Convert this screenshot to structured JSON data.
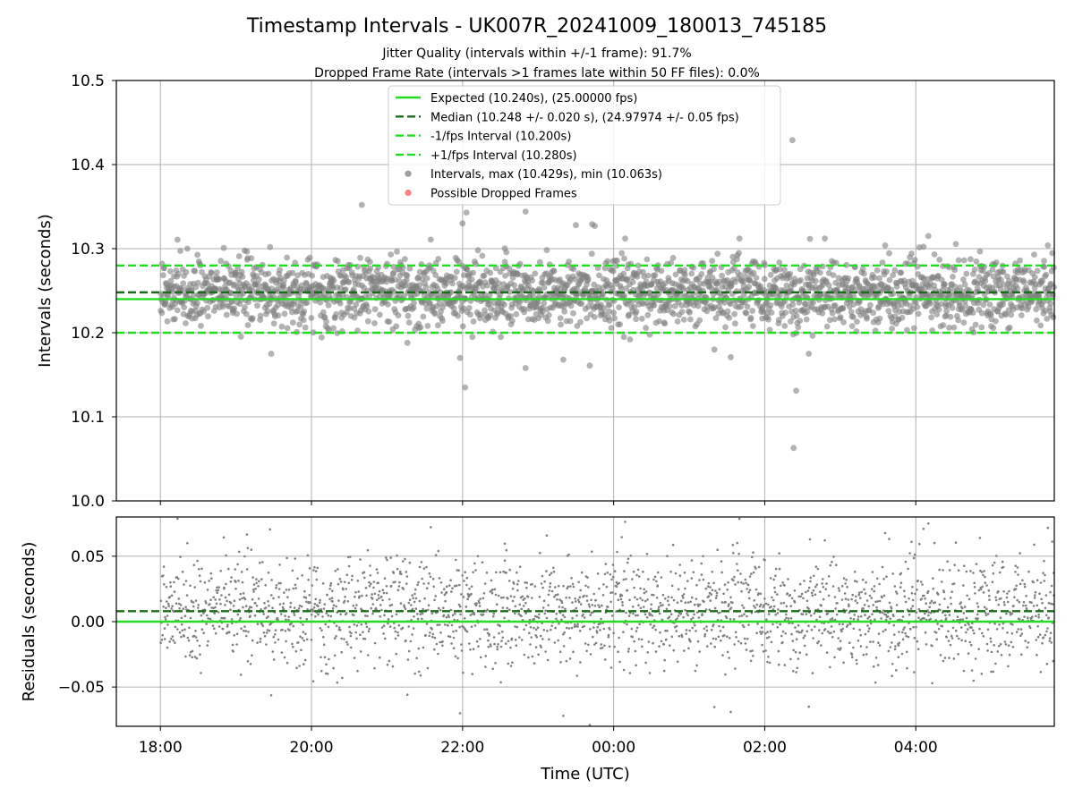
{
  "chart_data": [
    {
      "type": "scatter",
      "title": "Timestamp Intervals - UK007R_20241009_180013_745185",
      "subtitle": [
        "Jitter Quality (intervals within +/-1 frame): 91.7%",
        "Dropped Frame Rate (intervals >1 frames late within 50 FF files): 0.0%"
      ],
      "ylabel": "Intervals (seconds)",
      "xlabel": "",
      "xlim": [
        "2024-10-09 17:25",
        "2024-10-10 05:50"
      ],
      "ylim": [
        10.0,
        10.5
      ],
      "yticks": [
        "10.0",
        "10.1",
        "10.2",
        "10.3",
        "10.4",
        "10.5"
      ],
      "grid": true,
      "legend_position": "top-center",
      "legend": [
        {
          "label": "Expected (10.240s), (25.00000 fps)",
          "style": "solid",
          "color": "#22dd22"
        },
        {
          "label": "Median (10.248 +/- 0.020 s), (24.97974 +/- 0.05 fps)",
          "style": "dashed",
          "color": "#1b6b1b"
        },
        {
          "label": "-1/fps Interval (10.200s)",
          "style": "dashed",
          "color": "#22dd22"
        },
        {
          "label": "+1/fps Interval (10.280s)",
          "style": "dashed",
          "color": "#22dd22"
        },
        {
          "label": "Intervals, max (10.429s), min (10.063s)",
          "style": "marker",
          "color": "#808080"
        },
        {
          "label": "Possible Dropped Frames",
          "style": "marker",
          "color": "#ff5a5a"
        }
      ],
      "hlines": [
        {
          "name": "expected",
          "y": 10.24
        },
        {
          "name": "median",
          "y": 10.248
        },
        {
          "name": "minus-one-fps",
          "y": 10.2
        },
        {
          "name": "plus-one-fps",
          "y": 10.28
        }
      ],
      "series": [
        {
          "x_range": [
            "2024-10-09 18:00",
            "2024-10-10 05:50"
          ],
          "mean": 10.248,
          "std": 0.02,
          "count": 2300,
          "outliers": [
            {
              "x": "2024-10-10 02:22",
              "y": 10.429
            },
            {
              "x": "2024-10-10 02:23",
              "y": 10.063
            },
            {
              "x": "2024-10-10 02:25",
              "y": 10.131
            },
            {
              "x": "2024-10-09 22:02",
              "y": 10.135
            },
            {
              "x": "2024-10-09 20:40",
              "y": 10.352
            },
            {
              "x": "2024-10-09 22:00",
              "y": 10.33
            },
            {
              "x": "2024-10-09 22:03",
              "y": 10.343
            },
            {
              "x": "2024-10-09 22:50",
              "y": 10.344
            },
            {
              "x": "2024-10-09 23:30",
              "y": 10.328
            },
            {
              "x": "2024-10-09 23:43",
              "y": 10.329
            },
            {
              "x": "2024-10-09 23:45",
              "y": 10.327
            },
            {
              "x": "2024-10-09 21:58",
              "y": 10.17
            },
            {
              "x": "2024-10-09 23:41",
              "y": 10.161
            },
            {
              "x": "2024-10-09 22:50",
              "y": 10.158
            },
            {
              "x": "2024-10-09 23:20",
              "y": 10.168
            },
            {
              "x": "2024-10-10 02:35",
              "y": 10.175
            },
            {
              "x": "2024-10-10 01:33",
              "y": 10.171
            },
            {
              "x": "2024-10-10 04:10",
              "y": 10.315
            }
          ]
        }
      ]
    },
    {
      "type": "scatter",
      "ylabel": "Residuals (seconds)",
      "xlabel": "Time (UTC)",
      "xlim": [
        "2024-10-09 17:25",
        "2024-10-10 05:50"
      ],
      "ylim": [
        -0.08,
        0.08
      ],
      "yticks": [
        "−0.05",
        "0.00",
        "0.05"
      ],
      "xticks": [
        "18:00",
        "20:00",
        "22:00",
        "00:00",
        "02:00",
        "04:00"
      ],
      "grid": true,
      "hlines": [
        {
          "name": "expected-residual",
          "y": 0.0
        },
        {
          "name": "median-residual",
          "y": 0.008
        }
      ],
      "series": [
        {
          "x_range": [
            "2024-10-09 18:00",
            "2024-10-10 05:50"
          ],
          "mean": 0.008,
          "std": 0.02,
          "count": 2300
        }
      ]
    }
  ],
  "colors": {
    "scatter": "#808080",
    "expected": "#22dd22",
    "median": "#1b6b1b",
    "dropped": "#ff5a5a",
    "grid": "#b0b0b0"
  }
}
